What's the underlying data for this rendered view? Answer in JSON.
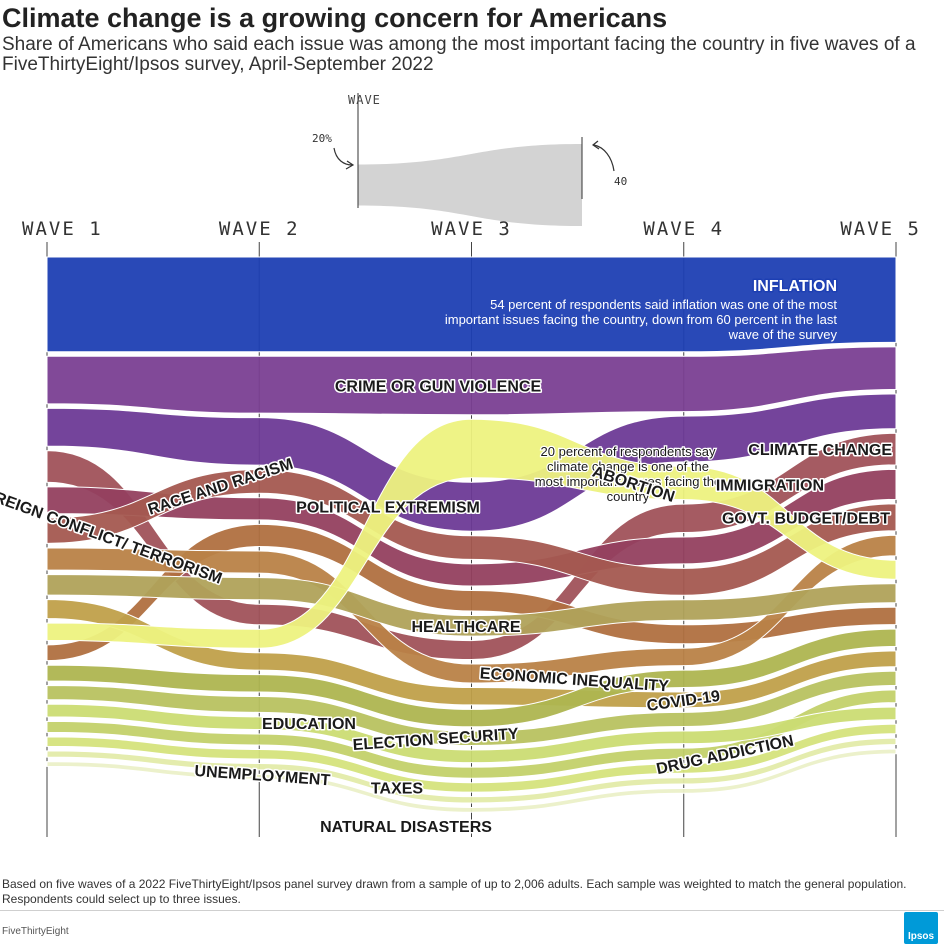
{
  "header": {
    "title": "Climate change is a growing concern for Americans",
    "subtitle": "Share of Americans who said each issue was among the most important facing the country in five waves of a FiveThirtyEight/Ipsos survey, April-September 2022"
  },
  "legend_key": {
    "label": "WAVE",
    "low_label": "20%",
    "high_label": "40",
    "low_value": 20,
    "high_value": 40
  },
  "chart_data": {
    "type": "area",
    "x": [
      "WAVE 1",
      "WAVE 2",
      "WAVE 3",
      "WAVE 4",
      "WAVE 5"
    ],
    "series": [
      {
        "name": "INFLATION",
        "values": [
          60,
          60,
          60,
          60,
          54
        ],
        "color": "#1d3fb3",
        "label_note": "54 percent of respondents said inflation was one of the most important issues facing the country, down from 60 percent in the last wave of the survey"
      },
      {
        "name": "CRIME OR GUN VIOLENCE",
        "values": [
          30,
          36,
          37,
          35,
          27
        ],
        "color": "#7a3f92"
      },
      {
        "name": "POLITICAL EXTREMISM",
        "values": [
          24,
          30,
          31,
          29,
          22
        ],
        "color": "#6d3a96"
      },
      {
        "name": "CLIMATE CHANGE",
        "values": [
          20,
          13,
          12,
          18,
          20
        ],
        "color": "#a0525a",
        "label_note": "20 percent of respondents say climate change is one of the most important issues facing the country"
      },
      {
        "name": "IMMIGRATION",
        "values": [
          17,
          14,
          14,
          17,
          19
        ],
        "color": "#93405f"
      },
      {
        "name": "GOVT. BUDGET/DEBT",
        "values": [
          16,
          15,
          15,
          17,
          17
        ],
        "color": "#a45850"
      },
      {
        "name": "ABORTION",
        "values": [
          11,
          12,
          37,
          21,
          12
        ],
        "color": "#edf27f"
      },
      {
        "name": "RACE AND RACISM",
        "values": [
          10,
          14,
          13,
          12,
          11
        ],
        "color": "#b07040"
      },
      {
        "name": "FOREIGN CONFLICT/ TERRORISM",
        "values": [
          14,
          14,
          12,
          11,
          13
        ],
        "color": "#b98247"
      },
      {
        "name": "HEALTHCARE",
        "values": [
          13,
          14,
          13,
          13,
          12
        ],
        "color": "#b0a25a"
      },
      {
        "name": "COVID-19",
        "values": [
          12,
          11,
          11,
          10,
          10
        ],
        "color": "#c0a04a"
      },
      {
        "name": "ECONOMIC INEQUALITY",
        "values": [
          10,
          11,
          11,
          11,
          11
        ],
        "color": "#aeb550"
      },
      {
        "name": "ELECTION SECURITY",
        "values": [
          9,
          10,
          9,
          9,
          9
        ],
        "color": "#b8c260"
      },
      {
        "name": "DRUG ADDICTION",
        "values": [
          7,
          7,
          7,
          7,
          8
        ],
        "color": "#c3d16a"
      },
      {
        "name": "EDUCATION",
        "values": [
          8,
          8,
          8,
          8,
          8
        ],
        "color": "#cbdc73"
      },
      {
        "name": "TAXES",
        "values": [
          6,
          6,
          6,
          6,
          6
        ],
        "color": "#d5e37c"
      },
      {
        "name": "UNEMPLOYMENT",
        "values": [
          4,
          4,
          4,
          4,
          4
        ],
        "color": "#e3eba9"
      },
      {
        "name": "NATURAL DISASTERS",
        "values": [
          3,
          3,
          3,
          3,
          3
        ],
        "color": "#ebf0c8"
      }
    ],
    "grid": true
  },
  "footer": {
    "note": "Based on five waves of a 2022 FiveThirtyEight/Ipsos panel survey drawn from a sample of up to 2,006 adults. Each sample was weighted to match the general population. Respondents could select up to three issues.",
    "credit": "FiveThirtyEight",
    "logo_text": "Ipsos"
  }
}
